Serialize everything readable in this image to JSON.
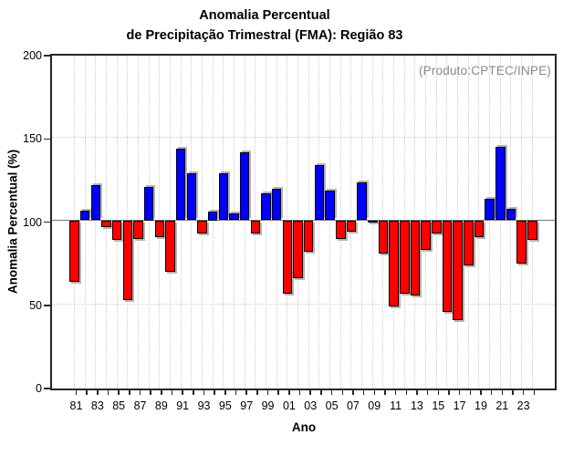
{
  "chart_data": {
    "type": "bar",
    "title_line1": "Anomalia Percentual",
    "title_line2": "de Precipitação Trimestral (FMA): Região 83",
    "xlabel": "Ano",
    "ylabel": "Anomalia Percentual (%)",
    "watermark": "(Produto:CPTEC/INPE)",
    "ylim": [
      0,
      200
    ],
    "yticks": [
      "0",
      "50",
      "100",
      "150",
      "200"
    ],
    "ygrid_dotted": [
      50,
      150
    ],
    "baseline": 100,
    "grid": "dotted",
    "legend": "none",
    "x_tick_labels": [
      "81",
      "83",
      "85",
      "87",
      "89",
      "91",
      "93",
      "95",
      "97",
      "99",
      "01",
      "03",
      "05",
      "07",
      "09",
      "11",
      "13",
      "15",
      "17",
      "19",
      "21",
      "23"
    ],
    "years": [
      "81",
      "82",
      "83",
      "84",
      "85",
      "86",
      "87",
      "88",
      "89",
      "90",
      "91",
      "92",
      "93",
      "94",
      "95",
      "96",
      "97",
      "98",
      "99",
      "00",
      "01",
      "02",
      "03",
      "04",
      "05",
      "06",
      "07",
      "08",
      "09",
      "10",
      "11",
      "12",
      "13",
      "14",
      "15",
      "16",
      "17",
      "18",
      "19",
      "20",
      "21",
      "22",
      "23",
      "24"
    ],
    "values": [
      63,
      106,
      121,
      96,
      88,
      52,
      89,
      120,
      90,
      69,
      143,
      128,
      92,
      105,
      128,
      104,
      141,
      92,
      116,
      119,
      56,
      65,
      81,
      133,
      118,
      89,
      93,
      123,
      99,
      80,
      48,
      56,
      55,
      82,
      92,
      45,
      40,
      73,
      90,
      113,
      144,
      107,
      74,
      88
    ],
    "colors": {
      "above_baseline": "#0000ff",
      "below_baseline": "#ff0000",
      "bar_border": "#000000",
      "bar_shadow": "#b4b4b4",
      "frame": "#262626",
      "grid": "#cccccc",
      "baseline_line": "#787878",
      "watermark_text": "#8a8a8a"
    }
  }
}
